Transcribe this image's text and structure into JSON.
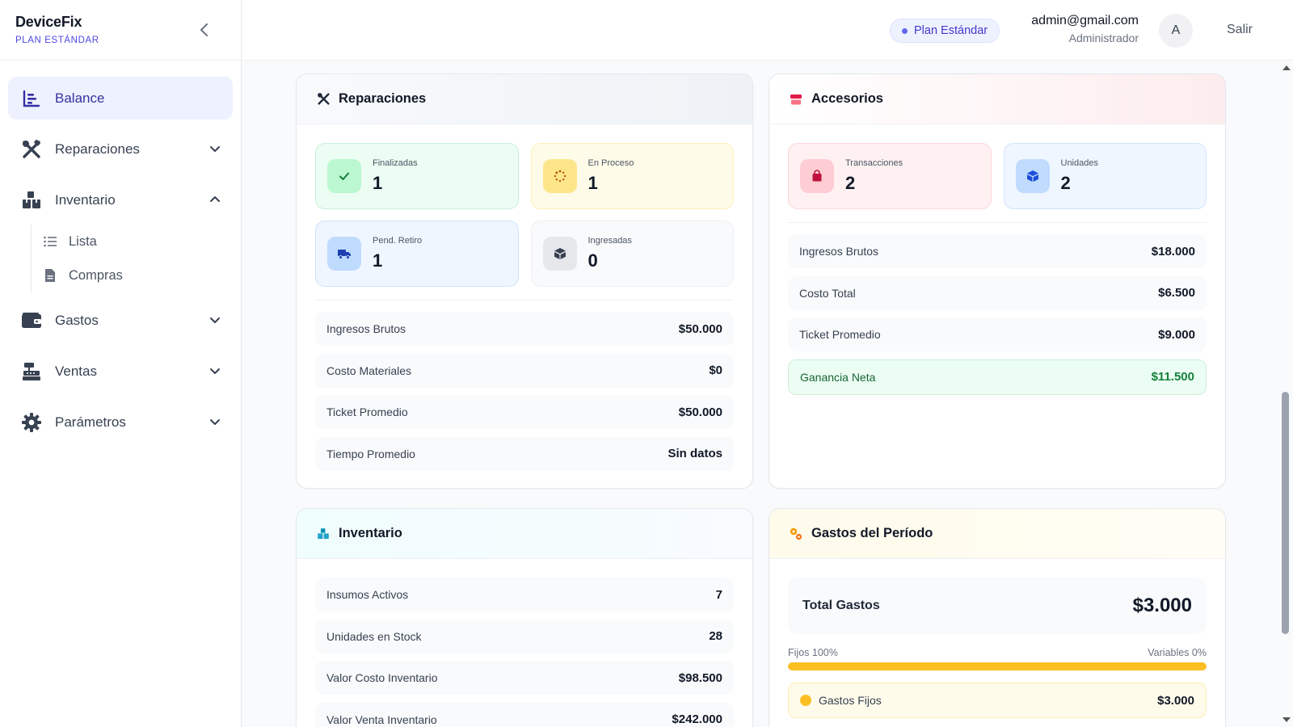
{
  "brand": {
    "name": "DeviceFix",
    "plan": "PLAN ESTÁNDAR"
  },
  "sidebar": {
    "items": [
      {
        "label": "Balance",
        "icon": "chart-bars-icon",
        "active": true
      },
      {
        "label": "Reparaciones",
        "icon": "tools-icon"
      },
      {
        "label": "Inventario",
        "icon": "boxes-icon",
        "expanded": true,
        "children": [
          {
            "label": "Lista",
            "icon": "list-icon"
          },
          {
            "label": "Compras",
            "icon": "document-icon"
          }
        ]
      },
      {
        "label": "Gastos",
        "icon": "wallet-icon"
      },
      {
        "label": "Ventas",
        "icon": "cash-register-icon"
      },
      {
        "label": "Parámetros",
        "icon": "gear-icon"
      }
    ]
  },
  "header": {
    "plan_pill": "Plan Estándar",
    "user_email": "admin@gmail.com",
    "user_role": "Administrador",
    "avatar_initial": "A",
    "logout": "Salir"
  },
  "reparaciones": {
    "title": "Reparaciones",
    "stats": [
      {
        "label": "Finalizadas",
        "value": "1"
      },
      {
        "label": "En Proceso",
        "value": "1"
      },
      {
        "label": "Pend. Retiro",
        "value": "1"
      },
      {
        "label": "Ingresadas",
        "value": "0"
      }
    ],
    "rows": [
      {
        "label": "Ingresos Brutos",
        "value": "$50.000"
      },
      {
        "label": "Costo Materiales",
        "value": "$0"
      },
      {
        "label": "Ticket Promedio",
        "value": "$50.000"
      },
      {
        "label": "Tiempo Promedio",
        "value": "Sin datos"
      }
    ]
  },
  "accesorios": {
    "title": "Accesorios",
    "stats": [
      {
        "label": "Transacciones",
        "value": "2"
      },
      {
        "label": "Unidades",
        "value": "2"
      }
    ],
    "rows": [
      {
        "label": "Ingresos Brutos",
        "value": "$18.000"
      },
      {
        "label": "Costo Total",
        "value": "$6.500"
      },
      {
        "label": "Ticket Promedio",
        "value": "$9.000"
      }
    ],
    "net": {
      "label": "Ganancia Neta",
      "value": "$11.500"
    }
  },
  "inventario": {
    "title": "Inventario",
    "rows": [
      {
        "label": "Insumos Activos",
        "value": "7"
      },
      {
        "label": "Unidades en Stock",
        "value": "28"
      },
      {
        "label": "Valor Costo Inventario",
        "value": "$98.500"
      },
      {
        "label": "Valor Venta Inventario",
        "value": "$242.000"
      }
    ]
  },
  "gastos": {
    "title": "Gastos del Período",
    "total_label": "Total Gastos",
    "total_value": "$3.000",
    "fixed_label": "Fijos 100%",
    "variable_label": "Variables 0%",
    "fixed_fraction": 1.0,
    "fixed_row_label": "Gastos Fijos",
    "fixed_row_value": "$3.000"
  },
  "colors": {
    "accent": "#4f46e5",
    "success": "#15803d",
    "amber": "#fbbf24"
  }
}
